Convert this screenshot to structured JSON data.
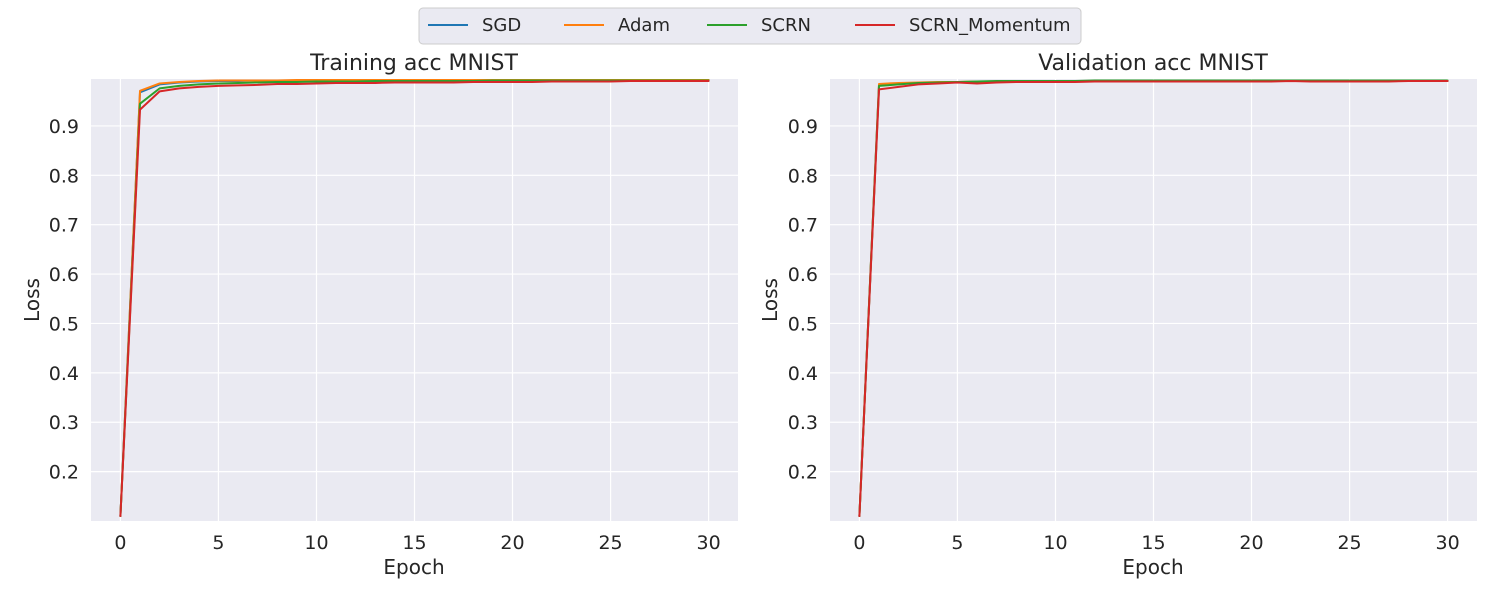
{
  "legend": {
    "entries": [
      {
        "name": "SGD",
        "color": "#1f77b4"
      },
      {
        "name": "Adam",
        "color": "#ff7f0e"
      },
      {
        "name": "SCRN",
        "color": "#2ca02c"
      },
      {
        "name": "SCRN_Momentum",
        "color": "#d62728"
      }
    ],
    "placement": "top-center"
  },
  "chart_data": [
    {
      "type": "line",
      "title": "Training acc MNIST",
      "xlabel": "Epoch",
      "ylabel": "Loss",
      "xlim": [
        -1.5,
        31.5
      ],
      "ylim": [
        0.1,
        0.995
      ],
      "xticks": [
        0,
        5,
        10,
        15,
        20,
        25,
        30
      ],
      "yticks": [
        0.2,
        0.3,
        0.4,
        0.5,
        0.6,
        0.7,
        0.8,
        0.9
      ],
      "grid": true,
      "x": [
        0,
        1,
        2,
        3,
        4,
        5,
        6,
        7,
        8,
        9,
        10,
        11,
        12,
        13,
        14,
        15,
        16,
        17,
        18,
        19,
        20,
        21,
        22,
        23,
        24,
        25,
        26,
        27,
        28,
        29,
        30
      ],
      "series": [
        {
          "name": "SGD",
          "color": "#1f77b4",
          "values": [
            0.11,
            0.968,
            0.984,
            0.988,
            0.99,
            0.991,
            0.991,
            0.992,
            0.992,
            0.992,
            0.993,
            0.993,
            0.993,
            0.993,
            0.993,
            0.993,
            0.993,
            0.993,
            0.993,
            0.993,
            0.993,
            0.993,
            0.993,
            0.993,
            0.993,
            0.993,
            0.993,
            0.993,
            0.993,
            0.993,
            0.993
          ]
        },
        {
          "name": "Adam",
          "color": "#ff7f0e",
          "values": [
            0.11,
            0.971,
            0.986,
            0.989,
            0.991,
            0.992,
            0.992,
            0.992,
            0.992,
            0.993,
            0.993,
            0.993,
            0.993,
            0.993,
            0.993,
            0.993,
            0.993,
            0.993,
            0.993,
            0.993,
            0.993,
            0.993,
            0.993,
            0.993,
            0.993,
            0.993,
            0.993,
            0.993,
            0.993,
            0.993,
            0.993
          ]
        },
        {
          "name": "SCRN",
          "color": "#2ca02c",
          "values": [
            0.11,
            0.945,
            0.976,
            0.981,
            0.984,
            0.986,
            0.987,
            0.988,
            0.989,
            0.989,
            0.99,
            0.99,
            0.99,
            0.991,
            0.991,
            0.991,
            0.991,
            0.991,
            0.991,
            0.992,
            0.992,
            0.992,
            0.992,
            0.992,
            0.992,
            0.992,
            0.992,
            0.992,
            0.992,
            0.992,
            0.992
          ]
        },
        {
          "name": "SCRN_Momentum",
          "color": "#d62728",
          "values": [
            0.11,
            0.933,
            0.97,
            0.976,
            0.979,
            0.981,
            0.982,
            0.983,
            0.985,
            0.985,
            0.986,
            0.987,
            0.987,
            0.987,
            0.988,
            0.988,
            0.988,
            0.988,
            0.989,
            0.989,
            0.989,
            0.989,
            0.99,
            0.99,
            0.99,
            0.99,
            0.991,
            0.991,
            0.991,
            0.991,
            0.991
          ]
        }
      ]
    },
    {
      "type": "line",
      "title": "Validation acc MNIST",
      "xlabel": "Epoch",
      "ylabel": "Loss",
      "xlim": [
        -1.5,
        31.5
      ],
      "ylim": [
        0.1,
        0.995
      ],
      "xticks": [
        0,
        5,
        10,
        15,
        20,
        25,
        30
      ],
      "yticks": [
        0.2,
        0.3,
        0.4,
        0.5,
        0.6,
        0.7,
        0.8,
        0.9
      ],
      "grid": true,
      "x": [
        0,
        1,
        2,
        3,
        4,
        5,
        6,
        7,
        8,
        9,
        10,
        11,
        12,
        13,
        14,
        15,
        16,
        17,
        18,
        19,
        20,
        21,
        22,
        23,
        24,
        25,
        26,
        27,
        28,
        29,
        30
      ],
      "series": [
        {
          "name": "SGD",
          "color": "#1f77b4",
          "values": [
            0.11,
            0.983,
            0.986,
            0.987,
            0.988,
            0.988,
            0.989,
            0.99,
            0.99,
            0.99,
            0.99,
            0.99,
            0.991,
            0.991,
            0.991,
            0.991,
            0.991,
            0.991,
            0.991,
            0.991,
            0.991,
            0.991,
            0.991,
            0.991,
            0.991,
            0.991,
            0.991,
            0.991,
            0.991,
            0.991,
            0.991
          ]
        },
        {
          "name": "Adam",
          "color": "#ff7f0e",
          "values": [
            0.11,
            0.985,
            0.987,
            0.988,
            0.989,
            0.989,
            0.99,
            0.99,
            0.99,
            0.991,
            0.991,
            0.991,
            0.991,
            0.991,
            0.991,
            0.991,
            0.991,
            0.991,
            0.991,
            0.991,
            0.991,
            0.991,
            0.991,
            0.991,
            0.991,
            0.991,
            0.991,
            0.991,
            0.991,
            0.991,
            0.991
          ]
        },
        {
          "name": "SCRN",
          "color": "#2ca02c",
          "values": [
            0.11,
            0.981,
            0.984,
            0.987,
            0.988,
            0.989,
            0.99,
            0.991,
            0.991,
            0.991,
            0.991,
            0.991,
            0.992,
            0.992,
            0.992,
            0.992,
            0.992,
            0.992,
            0.992,
            0.992,
            0.992,
            0.992,
            0.992,
            0.992,
            0.992,
            0.992,
            0.992,
            0.992,
            0.992,
            0.992,
            0.992
          ]
        },
        {
          "name": "SCRN_Momentum",
          "color": "#d62728",
          "values": [
            0.11,
            0.974,
            0.979,
            0.984,
            0.986,
            0.988,
            0.986,
            0.988,
            0.989,
            0.989,
            0.989,
            0.989,
            0.99,
            0.99,
            0.99,
            0.99,
            0.99,
            0.99,
            0.99,
            0.99,
            0.99,
            0.99,
            0.991,
            0.99,
            0.99,
            0.99,
            0.99,
            0.99,
            0.991,
            0.991,
            0.991
          ]
        }
      ]
    }
  ]
}
